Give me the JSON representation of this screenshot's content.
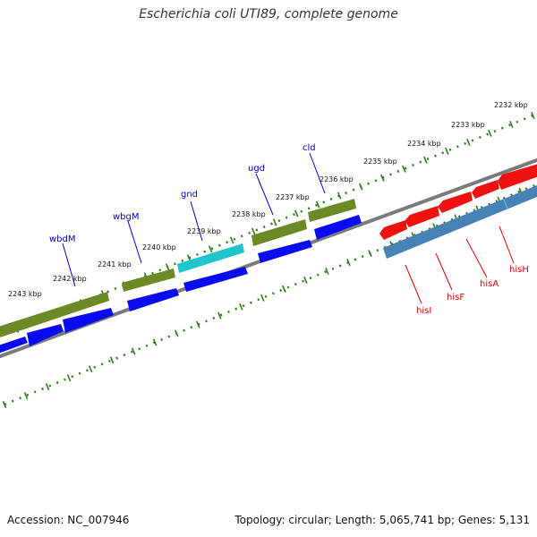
{
  "title": "Escherichia coli UTI89, complete genome",
  "footer": {
    "accession": "Accession: NC_007946",
    "stats": "Topology: circular; Length: 5,065,741 bp; Genes: 5,131"
  },
  "colors": {
    "ruler": "#2e7d1a",
    "backbone": "#8a8a8a",
    "strand_cds_forward": "#0a0af0",
    "gene_olive": "#6b8a26",
    "gene_cyan": "#20c4cc",
    "strand_cds_reverse": "#ee1111",
    "gene_steelblue": "#4682b4",
    "label_forward": "#0000cc",
    "label_reverse": "#dd0000"
  },
  "ruler_labels": [
    "2232 kbp",
    "2233 kbp",
    "2234 kbp",
    "2235 kbp",
    "2236 kbp",
    "2237 kbp",
    "2238 kbp",
    "2239 kbp",
    "2240 kbp",
    "2241 kbp",
    "2242 kbp",
    "2243 kbp"
  ],
  "forward_gene_labels": [
    "cld",
    "ugd",
    "gnd",
    "wbgM",
    "wbdM"
  ],
  "reverse_gene_labels": [
    "hisH",
    "hisA",
    "hisF",
    "hisI"
  ]
}
